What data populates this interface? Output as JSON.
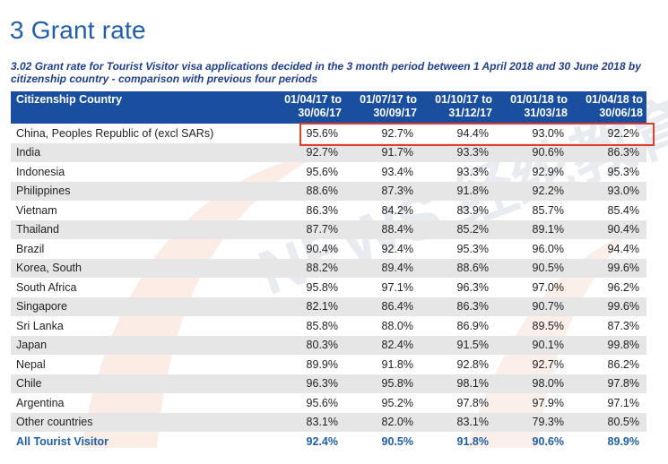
{
  "title": "3 Grant rate",
  "subtitle": "3.02 Grant rate for Tourist Visitor visa applications decided in the 3 month period between 1 April 2018 and 30 June 2018 by citizenship country - comparison with previous four periods",
  "headers": [
    "Citizenship Country",
    "01/04/17 to 30/06/17",
    "01/07/17 to 30/09/17",
    "01/10/17 to 31/12/17",
    "01/01/18 to 31/03/18",
    "01/04/18 to 30/06/18"
  ],
  "rows": [
    {
      "country": "China, Peoples Republic of (excl SARs)",
      "values": [
        "95.6%",
        "92.7%",
        "94.4%",
        "93.0%",
        "92.2%"
      ]
    },
    {
      "country": "India",
      "values": [
        "92.7%",
        "91.7%",
        "93.3%",
        "90.6%",
        "86.3%"
      ]
    },
    {
      "country": "Indonesia",
      "values": [
        "95.6%",
        "93.4%",
        "93.3%",
        "92.9%",
        "95.3%"
      ]
    },
    {
      "country": "Philippines",
      "values": [
        "88.6%",
        "87.3%",
        "91.8%",
        "92.2%",
        "93.0%"
      ]
    },
    {
      "country": "Vietnam",
      "values": [
        "86.3%",
        "84.2%",
        "83.9%",
        "85.7%",
        "85.4%"
      ]
    },
    {
      "country": "Thailand",
      "values": [
        "87.7%",
        "88.4%",
        "85.2%",
        "89.1%",
        "90.4%"
      ]
    },
    {
      "country": "Brazil",
      "values": [
        "90.4%",
        "92.4%",
        "95.3%",
        "96.0%",
        "94.4%"
      ]
    },
    {
      "country": "Korea, South",
      "values": [
        "88.2%",
        "89.4%",
        "88.6%",
        "90.5%",
        "99.6%"
      ]
    },
    {
      "country": "South Africa",
      "values": [
        "95.8%",
        "97.1%",
        "96.3%",
        "97.0%",
        "96.2%"
      ]
    },
    {
      "country": "Singapore",
      "values": [
        "82.1%",
        "86.4%",
        "86.3%",
        "90.7%",
        "99.6%"
      ]
    },
    {
      "country": "Sri Lanka",
      "values": [
        "85.8%",
        "88.0%",
        "86.9%",
        "89.5%",
        "87.3%"
      ]
    },
    {
      "country": "Japan",
      "values": [
        "80.3%",
        "82.4%",
        "91.5%",
        "90.1%",
        "99.8%"
      ]
    },
    {
      "country": "Nepal",
      "values": [
        "89.9%",
        "91.8%",
        "92.8%",
        "92.7%",
        "86.2%"
      ]
    },
    {
      "country": "Chile",
      "values": [
        "96.3%",
        "95.8%",
        "98.1%",
        "98.0%",
        "97.8%"
      ]
    },
    {
      "country": "Argentina",
      "values": [
        "95.6%",
        "95.2%",
        "97.8%",
        "97.9%",
        "97.1%"
      ]
    },
    {
      "country": "Other countries",
      "values": [
        "83.1%",
        "82.0%",
        "83.1%",
        "79.3%",
        "80.5%"
      ]
    }
  ],
  "total": {
    "country": "All Tourist Visitor",
    "values": [
      "92.4%",
      "90.5%",
      "91.8%",
      "90.6%",
      "89.9%"
    ]
  },
  "colors": {
    "header_bg": "#1a4fa0",
    "title": "#1f5fa8",
    "highlight": "#e03b2d",
    "stripe": "#e6e6e6"
  },
  "watermark_text": "NEWS 经纶教育"
}
